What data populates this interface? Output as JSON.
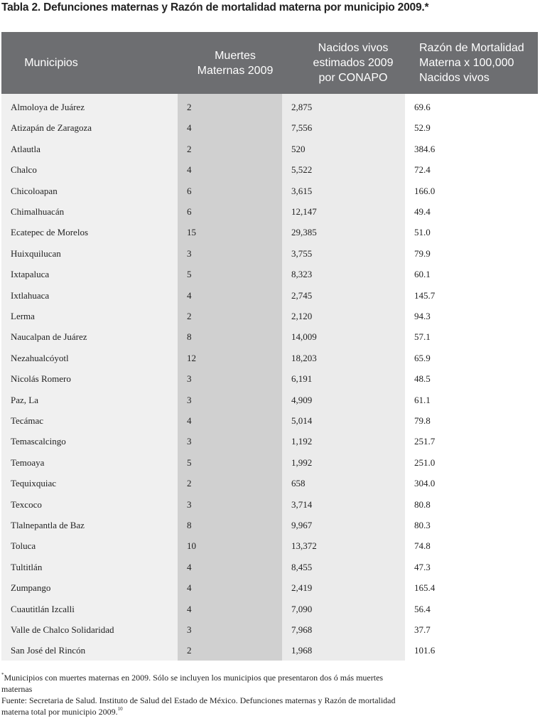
{
  "header": {
    "title": "Tabla 2. Defunciones maternas y Razón de mortalidad materna por municipio 2009.*"
  },
  "table": {
    "columns": [
      [
        "Municipios"
      ],
      [
        "Muertes",
        "Maternas 2009"
      ],
      [
        "Nacidos vivos",
        "estimados 2009",
        "por CONAPO"
      ],
      [
        "Razón de Mortalidad",
        "Materna x 100,000",
        "Nacidos vivos"
      ]
    ],
    "rows": [
      [
        "Almoloya de Juárez",
        "2",
        "2,875",
        "69.6"
      ],
      [
        "Atizapán de Zaragoza",
        "4",
        "7,556",
        "52.9"
      ],
      [
        "Atlautla",
        "2",
        "520",
        "384.6"
      ],
      [
        "Chalco",
        "4",
        "5,522",
        "72.4"
      ],
      [
        "Chicoloapan",
        "6",
        "3,615",
        "166.0"
      ],
      [
        "Chimalhuacán",
        "6",
        "12,147",
        "49.4"
      ],
      [
        "Ecatepec de Morelos",
        "15",
        "29,385",
        "51.0"
      ],
      [
        "Huixquilucan",
        "3",
        "3,755",
        "79.9"
      ],
      [
        "Ixtapaluca",
        "5",
        "8,323",
        "60.1"
      ],
      [
        "Ixtlahuaca",
        "4",
        "2,745",
        "145.7"
      ],
      [
        "Lerma",
        "2",
        "2,120",
        "94.3"
      ],
      [
        "Naucalpan de Juárez",
        "8",
        "14,009",
        "57.1"
      ],
      [
        "Nezahualcóyotl",
        "12",
        "18,203",
        "65.9"
      ],
      [
        "Nicolás Romero",
        "3",
        "6,191",
        "48.5"
      ],
      [
        "Paz, La",
        "3",
        "4,909",
        "61.1"
      ],
      [
        "Tecámac",
        "4",
        "5,014",
        "79.8"
      ],
      [
        "Temascalcingo",
        "3",
        "1,192",
        "251.7"
      ],
      [
        "Temoaya",
        "5",
        "1,992",
        "251.0"
      ],
      [
        "Tequixquiac",
        "2",
        "658",
        "304.0"
      ],
      [
        "Texcoco",
        "3",
        "3,714",
        "80.8"
      ],
      [
        "Tlalnepantla de Baz",
        "8",
        "9,967",
        "80.3"
      ],
      [
        "Toluca",
        "10",
        "13,372",
        "74.8"
      ],
      [
        "Tultitlán",
        "4",
        "8,455",
        "47.3"
      ],
      [
        "Zumpango",
        "4",
        "2,419",
        "165.4"
      ],
      [
        "Cuautitlán Izcalli",
        "4",
        "7,090",
        "56.4"
      ],
      [
        "Valle de Chalco Solidaridad",
        "3",
        "7,968",
        "37.7"
      ],
      [
        "San José del Rincón",
        "2",
        "1,968",
        "101.6"
      ]
    ]
  },
  "notes": {
    "note_mark": "*",
    "note": "Municipios con muertes maternas en 2009. Sólo se incluyen los municipios que presentaron dos ó más muertes maternas",
    "source": "Fuente: Secretaria de Salud. Instituto de Salud del Estado de México. Defunciones maternas y Razón de mortalidad materna total por municipio 2009.",
    "source_ref": "10"
  }
}
